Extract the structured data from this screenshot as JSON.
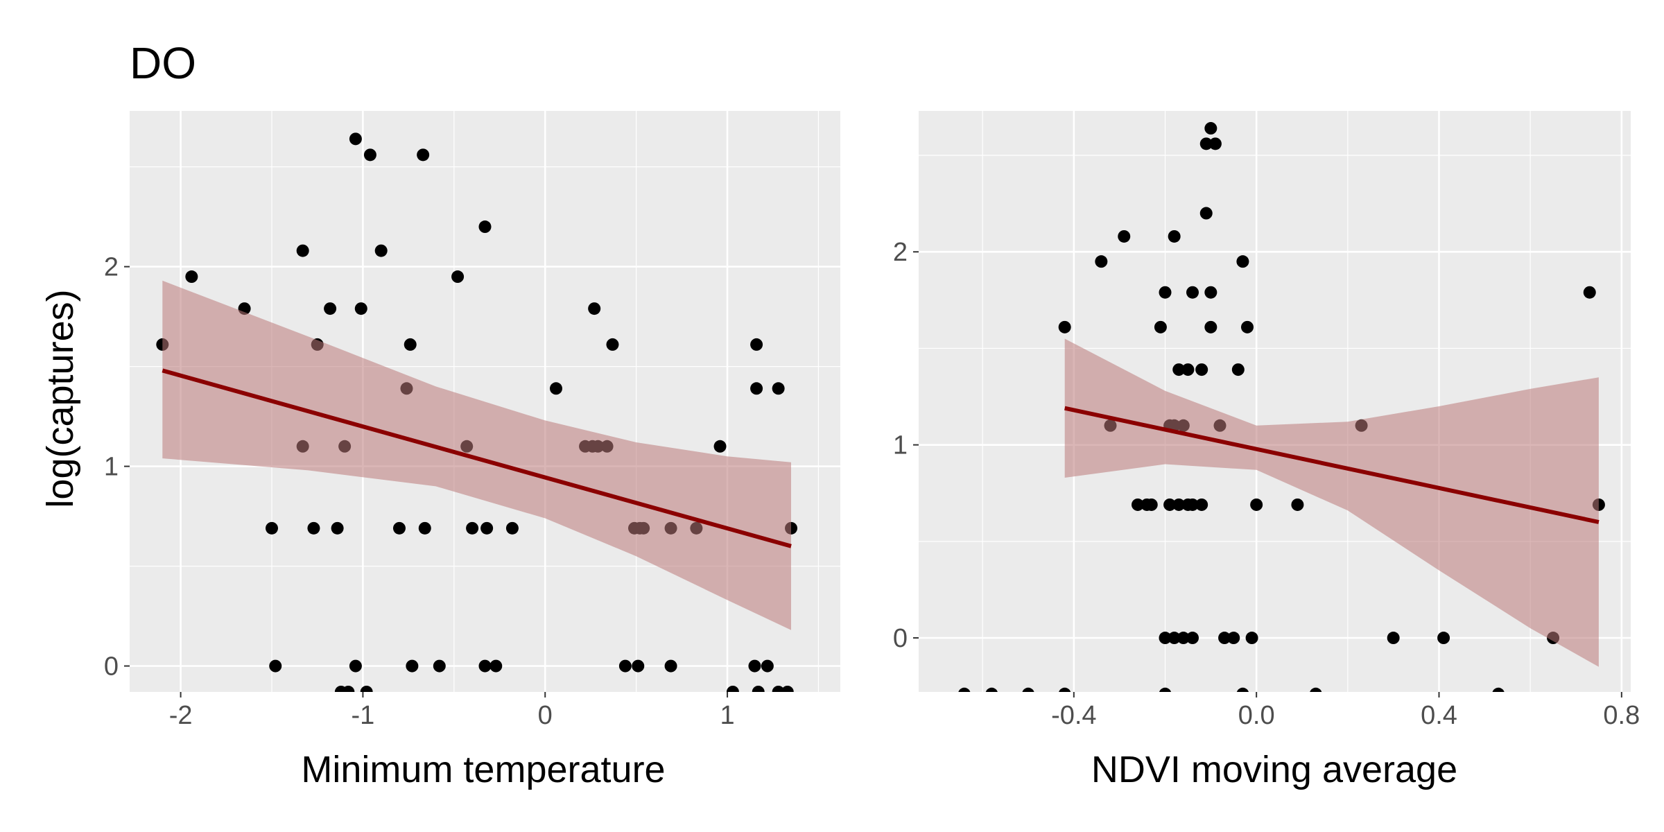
{
  "title": "DO",
  "chart_data": [
    {
      "type": "scatter",
      "xlabel": "Minimum temperature",
      "ylabel": "log(captures)",
      "xlim": [
        -2.28,
        1.62
      ],
      "ylim": [
        -0.13,
        2.78
      ],
      "xticks": [
        -2,
        -1,
        0,
        1
      ],
      "xtick_labels": [
        "-2",
        "-1",
        "0",
        "1"
      ],
      "yticks": [
        0,
        1,
        2
      ],
      "ytick_labels": [
        "0",
        "1",
        "2"
      ],
      "grid": true,
      "points": [
        [
          -2.1,
          1.61
        ],
        [
          -1.94,
          1.95
        ],
        [
          -1.65,
          1.79
        ],
        [
          -1.5,
          0.69
        ],
        [
          -1.48,
          0.0
        ],
        [
          -1.33,
          2.08
        ],
        [
          -1.33,
          1.1
        ],
        [
          -1.27,
          0.69
        ],
        [
          -1.25,
          1.61
        ],
        [
          -1.18,
          1.79
        ],
        [
          -1.14,
          0.69
        ],
        [
          -1.12,
          -0.13
        ],
        [
          -1.1,
          1.1
        ],
        [
          -1.08,
          -0.13
        ],
        [
          -1.04,
          2.64
        ],
        [
          -1.04,
          0.0
        ],
        [
          -1.01,
          1.79
        ],
        [
          -0.98,
          -0.13
        ],
        [
          -0.96,
          2.56
        ],
        [
          -0.9,
          2.08
        ],
        [
          -0.8,
          0.69
        ],
        [
          -0.76,
          1.39
        ],
        [
          -0.74,
          1.61
        ],
        [
          -0.73,
          0.0
        ],
        [
          -0.67,
          2.56
        ],
        [
          -0.66,
          0.69
        ],
        [
          -0.58,
          0.0
        ],
        [
          -0.48,
          1.95
        ],
        [
          -0.43,
          1.1
        ],
        [
          -0.4,
          0.69
        ],
        [
          -0.33,
          2.2
        ],
        [
          -0.33,
          0.0
        ],
        [
          -0.32,
          0.69
        ],
        [
          -0.27,
          0.0
        ],
        [
          -0.18,
          0.69
        ],
        [
          0.06,
          1.39
        ],
        [
          0.22,
          1.1
        ],
        [
          0.26,
          1.1
        ],
        [
          0.27,
          1.79
        ],
        [
          0.29,
          1.1
        ],
        [
          0.34,
          1.1
        ],
        [
          0.37,
          1.61
        ],
        [
          0.44,
          0.0
        ],
        [
          0.49,
          0.69
        ],
        [
          0.51,
          0.0
        ],
        [
          0.52,
          0.69
        ],
        [
          0.54,
          0.69
        ],
        [
          0.69,
          0.0
        ],
        [
          0.69,
          0.69
        ],
        [
          0.83,
          0.69
        ],
        [
          0.96,
          1.1
        ],
        [
          1.03,
          -0.13
        ],
        [
          1.15,
          0.0
        ],
        [
          1.16,
          1.61
        ],
        [
          1.16,
          1.39
        ],
        [
          1.17,
          -0.13
        ],
        [
          1.22,
          0.0
        ],
        [
          1.28,
          1.39
        ],
        [
          1.28,
          -0.13
        ],
        [
          1.33,
          -0.13
        ],
        [
          1.35,
          0.69
        ]
      ],
      "fit_line": {
        "x": [
          -2.1,
          1.35
        ],
        "y": [
          1.48,
          0.6
        ]
      },
      "confidence_band": {
        "x": [
          -2.1,
          -1.3,
          -0.6,
          0.0,
          0.5,
          1.0,
          1.35
        ],
        "upper": [
          1.93,
          1.65,
          1.4,
          1.23,
          1.12,
          1.05,
          1.02
        ],
        "lower": [
          1.04,
          0.98,
          0.9,
          0.74,
          0.55,
          0.33,
          0.18
        ]
      },
      "colors": {
        "panel_bg": "#ebebeb",
        "grid": "#ffffff",
        "point": "#000000",
        "line": "#8b0000",
        "band": "#bc7a7a"
      }
    },
    {
      "type": "scatter",
      "xlabel": "NDVI moving average",
      "ylabel": "",
      "xlim": [
        -0.74,
        0.82
      ],
      "ylim": [
        -0.28,
        2.73
      ],
      "xticks": [
        -0.4,
        0.0,
        0.4,
        0.8
      ],
      "xtick_labels": [
        "-0.4",
        "0.0",
        "0.4",
        "0.8"
      ],
      "yticks": [
        0,
        1,
        2
      ],
      "ytick_labels": [
        "0",
        "1",
        "2"
      ],
      "grid": true,
      "points": [
        [
          -0.64,
          -0.29
        ],
        [
          -0.58,
          -0.29
        ],
        [
          -0.5,
          -0.29
        ],
        [
          -0.42,
          -0.29
        ],
        [
          -0.42,
          1.61
        ],
        [
          -0.34,
          1.95
        ],
        [
          -0.32,
          1.1
        ],
        [
          -0.29,
          2.08
        ],
        [
          -0.26,
          0.69
        ],
        [
          -0.24,
          0.69
        ],
        [
          -0.23,
          0.69
        ],
        [
          -0.21,
          1.61
        ],
        [
          -0.2,
          1.79
        ],
        [
          -0.2,
          0.0
        ],
        [
          -0.2,
          -0.29
        ],
        [
          -0.19,
          1.1
        ],
        [
          -0.19,
          0.69
        ],
        [
          -0.18,
          2.08
        ],
        [
          -0.18,
          1.1
        ],
        [
          -0.18,
          0.0
        ],
        [
          -0.17,
          1.39
        ],
        [
          -0.17,
          0.69
        ],
        [
          -0.16,
          0.0
        ],
        [
          -0.16,
          1.1
        ],
        [
          -0.15,
          1.39
        ],
        [
          -0.15,
          0.69
        ],
        [
          -0.14,
          1.79
        ],
        [
          -0.14,
          0.69
        ],
        [
          -0.14,
          0.0
        ],
        [
          -0.12,
          1.39
        ],
        [
          -0.12,
          0.69
        ],
        [
          -0.11,
          2.56
        ],
        [
          -0.11,
          2.2
        ],
        [
          -0.1,
          2.64
        ],
        [
          -0.1,
          1.79
        ],
        [
          -0.1,
          1.61
        ],
        [
          -0.09,
          2.56
        ],
        [
          -0.08,
          1.1
        ],
        [
          -0.07,
          0.0
        ],
        [
          -0.05,
          0.0
        ],
        [
          -0.04,
          1.39
        ],
        [
          -0.03,
          1.95
        ],
        [
          -0.03,
          -0.29
        ],
        [
          -0.02,
          1.61
        ],
        [
          -0.01,
          0.0
        ],
        [
          0.0,
          0.69
        ],
        [
          0.09,
          0.69
        ],
        [
          0.13,
          -0.29
        ],
        [
          0.23,
          1.1
        ],
        [
          0.3,
          0.0
        ],
        [
          0.41,
          0.0
        ],
        [
          0.53,
          -0.29
        ],
        [
          0.65,
          0.0
        ],
        [
          0.73,
          1.79
        ],
        [
          0.75,
          0.69
        ]
      ],
      "fit_line": {
        "x": [
          -0.42,
          0.75
        ],
        "y": [
          1.19,
          0.6
        ]
      },
      "confidence_band": {
        "x": [
          -0.42,
          -0.2,
          0.0,
          0.2,
          0.4,
          0.6,
          0.75
        ],
        "upper": [
          1.55,
          1.28,
          1.1,
          1.12,
          1.2,
          1.29,
          1.35
        ],
        "lower": [
          0.83,
          0.9,
          0.87,
          0.66,
          0.35,
          0.05,
          -0.15
        ]
      },
      "colors": {
        "panel_bg": "#ebebeb",
        "grid": "#ffffff",
        "point": "#000000",
        "line": "#8b0000",
        "band": "#bc7a7a"
      }
    }
  ]
}
